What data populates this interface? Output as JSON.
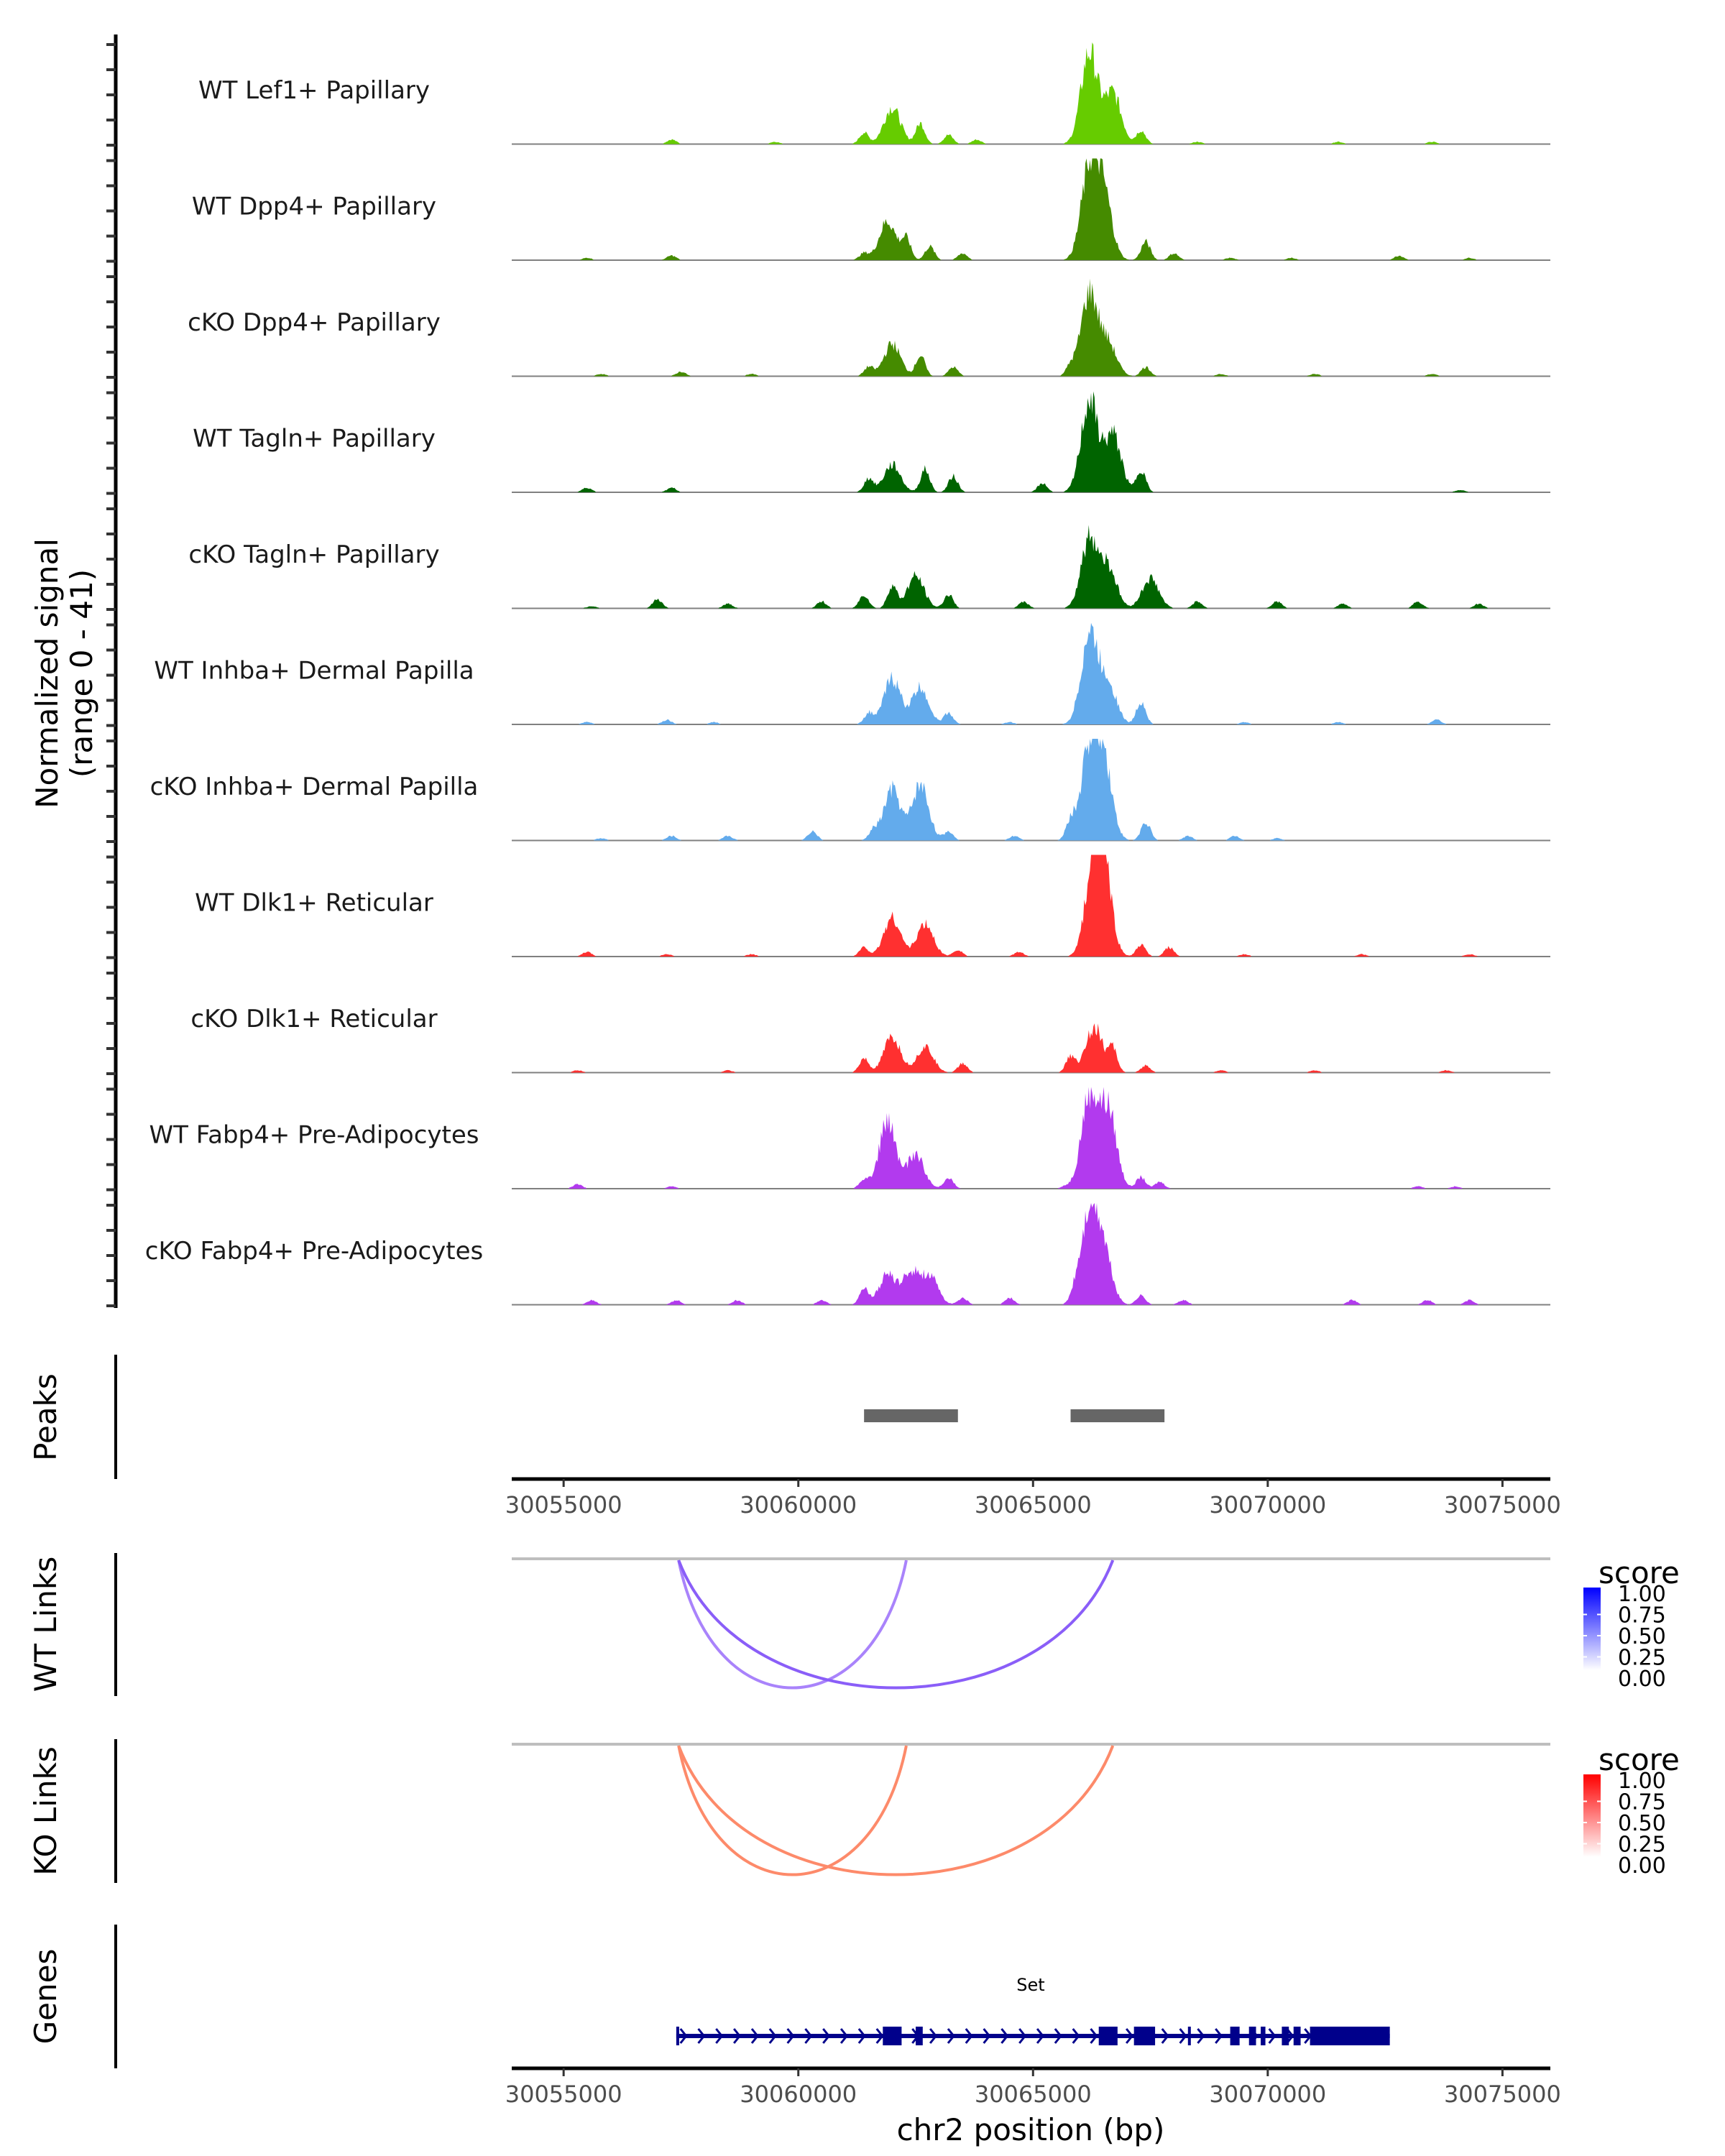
{
  "chart_data": {
    "type": "area",
    "title": "",
    "region": {
      "chrom": "chr2",
      "start": 30053895,
      "end": 30076020
    },
    "signal_panel": {
      "ylabel_line1": "Normalized signal",
      "ylabel_line2": "(range 0 - 41)",
      "ylim": [
        0,
        41
      ],
      "tracks": [
        {
          "name": "WT Lef1+ Papillary",
          "color": "#66CC00",
          "peaks": [
            [
              30057300,
              2
            ],
            [
              30059500,
              1
            ],
            [
              30061400,
              5
            ],
            [
              30062000,
              16
            ],
            [
              30062600,
              9
            ],
            [
              30063200,
              4
            ],
            [
              30063800,
              2
            ],
            [
              30066200,
              40
            ],
            [
              30066700,
              22
            ],
            [
              30067300,
              6
            ],
            [
              30068500,
              1
            ],
            [
              30071500,
              1
            ],
            [
              30073500,
              1
            ]
          ]
        },
        {
          "name": "WT Dpp4+ Papillary",
          "color": "#458B00",
          "peaks": [
            [
              30055500,
              1
            ],
            [
              30057300,
              2
            ],
            [
              30061400,
              3
            ],
            [
              30061900,
              17
            ],
            [
              30062300,
              9
            ],
            [
              30062800,
              6
            ],
            [
              30063500,
              3
            ],
            [
              30066200,
              38
            ],
            [
              30066500,
              28
            ],
            [
              30067400,
              8
            ],
            [
              30068000,
              3
            ],
            [
              30069200,
              1
            ],
            [
              30070500,
              1
            ],
            [
              30072800,
              2
            ],
            [
              30074300,
              1
            ]
          ]
        },
        {
          "name": "cKO Dpp4+ Papillary",
          "color": "#458B00",
          "peaks": [
            [
              30055800,
              1
            ],
            [
              30057500,
              2
            ],
            [
              30059000,
              1
            ],
            [
              30061500,
              4
            ],
            [
              30062000,
              14
            ],
            [
              30062600,
              9
            ],
            [
              30063300,
              4
            ],
            [
              30065800,
              4
            ],
            [
              30066200,
              36
            ],
            [
              30066600,
              14
            ],
            [
              30067400,
              4
            ],
            [
              30069000,
              1
            ],
            [
              30071000,
              1
            ],
            [
              30073500,
              1
            ]
          ]
        },
        {
          "name": "WT Tagln+ Papillary",
          "color": "#006400",
          "peaks": [
            [
              30055500,
              2
            ],
            [
              30057300,
              2
            ],
            [
              30061500,
              6
            ],
            [
              30062000,
              12
            ],
            [
              30062700,
              10
            ],
            [
              30063300,
              7
            ],
            [
              30065200,
              4
            ],
            [
              30066200,
              40
            ],
            [
              30066700,
              25
            ],
            [
              30067300,
              10
            ],
            [
              30074100,
              1
            ]
          ]
        },
        {
          "name": "cKO Tagln+ Papillary",
          "color": "#006400",
          "peaks": [
            [
              30055600,
              1
            ],
            [
              30057000,
              4
            ],
            [
              30058500,
              2
            ],
            [
              30060500,
              3
            ],
            [
              30061400,
              6
            ],
            [
              30062000,
              10
            ],
            [
              30062500,
              14
            ],
            [
              30063200,
              6
            ],
            [
              30064800,
              3
            ],
            [
              30066200,
              30
            ],
            [
              30066600,
              18
            ],
            [
              30067500,
              13
            ],
            [
              30068500,
              3
            ],
            [
              30070200,
              3
            ],
            [
              30071600,
              2
            ],
            [
              30073200,
              3
            ],
            [
              30074500,
              2
            ]
          ]
        },
        {
          "name": "WT Inhba+ Dermal Papilla",
          "color": "#63ABEC",
          "peaks": [
            [
              30055500,
              1
            ],
            [
              30057200,
              2
            ],
            [
              30058200,
              1
            ],
            [
              30061500,
              5
            ],
            [
              30062000,
              20
            ],
            [
              30062600,
              16
            ],
            [
              30063200,
              5
            ],
            [
              30064500,
              1
            ],
            [
              30066200,
              39
            ],
            [
              30066600,
              18
            ],
            [
              30067300,
              10
            ],
            [
              30069500,
              1
            ],
            [
              30071500,
              1
            ],
            [
              30073600,
              2
            ]
          ]
        },
        {
          "name": "cKO Inhba+ Dermal Papilla",
          "color": "#63ABEC",
          "peaks": [
            [
              30055800,
              1
            ],
            [
              30057300,
              2
            ],
            [
              30058500,
              2
            ],
            [
              30060300,
              4
            ],
            [
              30061600,
              4
            ],
            [
              30062000,
              22
            ],
            [
              30062600,
              24
            ],
            [
              30063200,
              4
            ],
            [
              30064600,
              2
            ],
            [
              30065800,
              8
            ],
            [
              30066200,
              38
            ],
            [
              30066500,
              35
            ],
            [
              30067400,
              8
            ],
            [
              30068300,
              2
            ],
            [
              30069300,
              2
            ],
            [
              30070200,
              1
            ]
          ]
        },
        {
          "name": "WT Dlk1+ Reticular",
          "color": "#FF3030",
          "peaks": [
            [
              30055500,
              2
            ],
            [
              30057200,
              1
            ],
            [
              30059000,
              1
            ],
            [
              30061400,
              4
            ],
            [
              30062000,
              17
            ],
            [
              30062700,
              14
            ],
            [
              30063400,
              3
            ],
            [
              30064700,
              2
            ],
            [
              30066300,
              39
            ],
            [
              30066500,
              33
            ],
            [
              30067300,
              5
            ],
            [
              30067900,
              4
            ],
            [
              30069500,
              1
            ],
            [
              30072000,
              1
            ],
            [
              30074300,
              1
            ]
          ]
        },
        {
          "name": "cKO Dlk1+ Reticular",
          "color": "#FF3030",
          "peaks": [
            [
              30055300,
              1
            ],
            [
              30058500,
              1
            ],
            [
              30061400,
              6
            ],
            [
              30062000,
              15
            ],
            [
              30062700,
              11
            ],
            [
              30063500,
              4
            ],
            [
              30065800,
              7
            ],
            [
              30066300,
              20
            ],
            [
              30066700,
              10
            ],
            [
              30067400,
              3
            ],
            [
              30069000,
              1
            ],
            [
              30071000,
              1
            ],
            [
              30073800,
              1
            ]
          ]
        },
        {
          "name": "WT Fabp4+ Pre-Adipocytes",
          "color": "#B23AEE",
          "peaks": [
            [
              30055300,
              2
            ],
            [
              30057300,
              1
            ],
            [
              30061400,
              4
            ],
            [
              30061900,
              29
            ],
            [
              30062500,
              15
            ],
            [
              30063200,
              5
            ],
            [
              30065700,
              1
            ],
            [
              30066200,
              40
            ],
            [
              30066600,
              34
            ],
            [
              30067300,
              5
            ],
            [
              30067700,
              3
            ],
            [
              30073200,
              1
            ],
            [
              30074000,
              1
            ]
          ]
        },
        {
          "name": "cKO Fabp4+ Pre-Adipocytes",
          "color": "#B23AEE",
          "peaks": [
            [
              30055600,
              2
            ],
            [
              30057400,
              2
            ],
            [
              30058700,
              2
            ],
            [
              30060500,
              2
            ],
            [
              30061400,
              7
            ],
            [
              30061900,
              13
            ],
            [
              30062400,
              14
            ],
            [
              30062800,
              12
            ],
            [
              30063500,
              3
            ],
            [
              30064500,
              3
            ],
            [
              30065900,
              4
            ],
            [
              30066200,
              38
            ],
            [
              30066500,
              22
            ],
            [
              30067300,
              4
            ],
            [
              30068200,
              2
            ],
            [
              30071800,
              2
            ],
            [
              30073400,
              2
            ],
            [
              30074300,
              2
            ]
          ]
        }
      ]
    },
    "peaks_panel": {
      "label": "Peaks",
      "color": "#666666",
      "regions": [
        [
          30061400,
          30063400
        ],
        [
          30065800,
          30067800
        ]
      ]
    },
    "x_axis": {
      "ticks": [
        30055000,
        30060000,
        30065000,
        30070000,
        30075000
      ],
      "tick_labels": [
        "30055000",
        "30060000",
        "30065000",
        "30070000",
        "30075000"
      ],
      "xlabel": "chr2 position (bp)"
    },
    "wt_links": {
      "label": "WT Links",
      "links": [
        {
          "start": 30057450,
          "end": 30062300,
          "score": 0.5
        },
        {
          "start": 30057450,
          "end": 30066700,
          "score": 0.7
        }
      ],
      "legend": {
        "title": "score",
        "ticks": [
          "1.00",
          "0.75",
          "0.50",
          "0.25",
          "0.00"
        ],
        "low_color": "#FFFFFF",
        "high_color": "#0000FF"
      }
    },
    "ko_links": {
      "label": "KO Links",
      "links": [
        {
          "start": 30057450,
          "end": 30062300,
          "score": 0.55
        },
        {
          "start": 30057450,
          "end": 30066700,
          "score": 0.55
        }
      ],
      "legend": {
        "title": "score",
        "ticks": [
          "1.00",
          "0.75",
          "0.50",
          "0.25",
          "0.00"
        ],
        "low_color": "#FFFFFF",
        "high_color": "#FF0000"
      }
    },
    "genes_panel": {
      "label": "Genes",
      "color": "#00008B",
      "gene": {
        "name": "Set",
        "strand": "+",
        "start": 30057400,
        "end": 30072600,
        "exons": [
          [
            30057400,
            30057450
          ],
          [
            30061800,
            30062200
          ],
          [
            30062500,
            30062650
          ],
          [
            30066400,
            30066800
          ],
          [
            30067150,
            30067600
          ],
          [
            30068300,
            30068350
          ],
          [
            30069200,
            30069400
          ],
          [
            30069600,
            30069750
          ],
          [
            30069850,
            30069950
          ],
          [
            30070300,
            30070450
          ],
          [
            30070550,
            30070700
          ],
          [
            30070900,
            30072600
          ]
        ]
      }
    }
  }
}
